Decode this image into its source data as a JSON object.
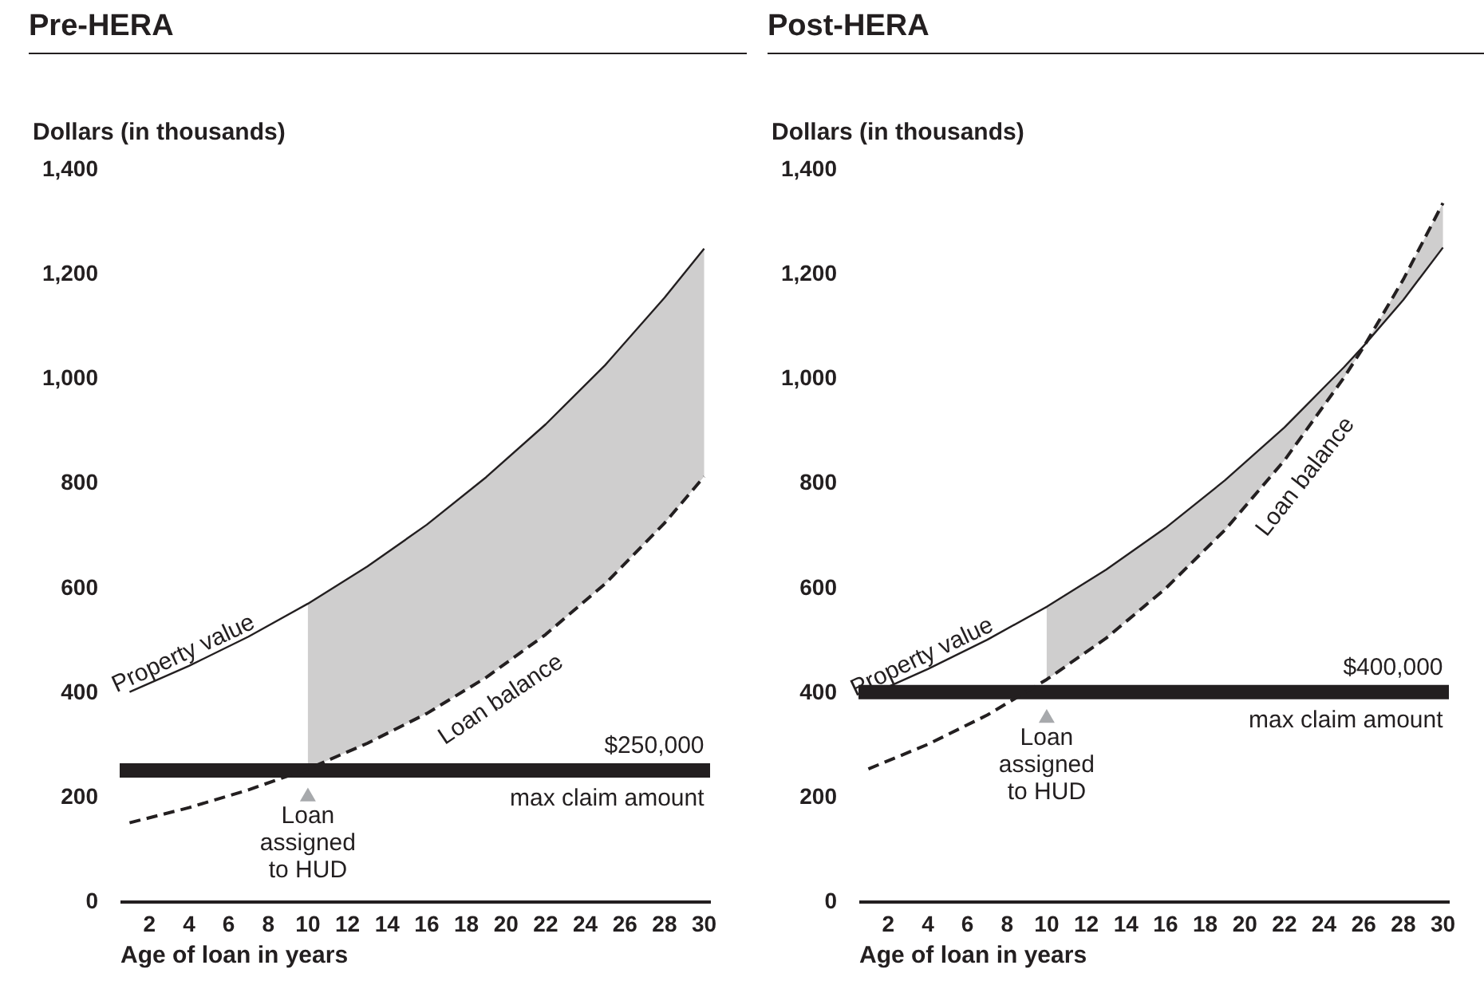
{
  "chart_data": [
    {
      "type": "line",
      "title": "Pre-HERA",
      "xlabel": "Age of loan in years",
      "ylabel": "Dollars (in thousands)",
      "xlim": [
        0.5,
        30.3
      ],
      "xticks": [
        2,
        4,
        6,
        8,
        10,
        12,
        14,
        16,
        18,
        20,
        22,
        24,
        26,
        28,
        30
      ],
      "ylim": [
        0,
        1400
      ],
      "yticks": [
        0,
        200,
        400,
        600,
        800,
        {
          "value": 1000,
          "label": "1,000"
        },
        {
          "value": 1200,
          "label": "1,200"
        },
        {
          "value": 1400,
          "label": "1,400"
        }
      ],
      "series": [
        {
          "name": "Property value",
          "color": "#231f20",
          "line_style": "solid",
          "x": [
            1,
            4,
            7,
            10,
            13,
            16,
            19,
            22,
            25,
            28,
            30
          ],
          "values": [
            400,
            450,
            506,
            569,
            640,
            720,
            811,
            912,
            1025,
            1154,
            1248
          ]
        },
        {
          "name": "Loan balance",
          "color": "#231f20",
          "line_style": "dashed",
          "x": [
            1,
            4,
            7,
            10,
            13,
            16,
            19,
            22,
            25,
            28,
            30
          ],
          "values": [
            150,
            179,
            213,
            253,
            302,
            359,
            428,
            510,
            607,
            723,
            812
          ],
          "lower": [
            null,
            null,
            null,
            253,
            302,
            359,
            428,
            510,
            607,
            723,
            812
          ],
          "upper": [
            null,
            null,
            null,
            569,
            640,
            720,
            811,
            912,
            1025,
            1154,
            1248
          ]
        }
      ],
      "ref_lines": [
        {
          "axis": "y",
          "value": 250,
          "label": "$250,000",
          "color": "#231f20"
        }
      ],
      "annotations": [
        "max claim amount",
        {
          "text": "Loan assigned to HUD",
          "x": 10,
          "y": 250
        }
      ]
    },
    {
      "type": "line",
      "title": "Post-HERA",
      "xlabel": "Age of loan in years",
      "ylabel": "Dollars (in thousands)",
      "xlim": [
        0.5,
        30.3
      ],
      "xticks": [
        2,
        4,
        6,
        8,
        10,
        12,
        14,
        16,
        18,
        20,
        22,
        24,
        26,
        28,
        30
      ],
      "ylim": [
        0,
        1400
      ],
      "yticks": [
        0,
        200,
        400,
        600,
        800,
        {
          "value": 1000,
          "label": "1,000"
        },
        {
          "value": 1200,
          "label": "1,200"
        },
        {
          "value": 1400,
          "label": "1,400"
        }
      ],
      "series": [
        {
          "name": "Property value",
          "color": "#231f20",
          "line_style": "solid",
          "x": [
            2,
            4,
            7,
            10,
            13,
            16,
            19,
            22,
            25,
            26,
            28,
            30
          ],
          "values": [
            410,
            444,
            500,
            563,
            634,
            714,
            805,
            906,
            1021,
            1062,
            1150,
            1250
          ]
        },
        {
          "name": "Loan balance",
          "color": "#231f20",
          "line_style": "dashed",
          "x": [
            1,
            4,
            7,
            10,
            13,
            16,
            19,
            22,
            25,
            26,
            28,
            30
          ],
          "values": [
            253,
            300,
            356,
            424,
            503,
            598,
            710,
            843,
            1001,
            1060,
            1189,
            1335
          ],
          "lower": [
            null,
            null,
            null,
            424,
            503,
            598,
            710,
            843,
            1001,
            1060,
            1189,
            1335
          ],
          "upper": [
            null,
            null,
            null,
            563,
            634,
            714,
            805,
            906,
            1021,
            1062,
            1150,
            1250
          ]
        }
      ],
      "ref_lines": [
        {
          "axis": "y",
          "value": 400,
          "label": "$400,000",
          "color": "#231f20"
        }
      ],
      "annotations": [
        "max claim amount",
        {
          "text": "Loan assigned to HUD",
          "x": 10,
          "y": 400
        }
      ]
    }
  ]
}
